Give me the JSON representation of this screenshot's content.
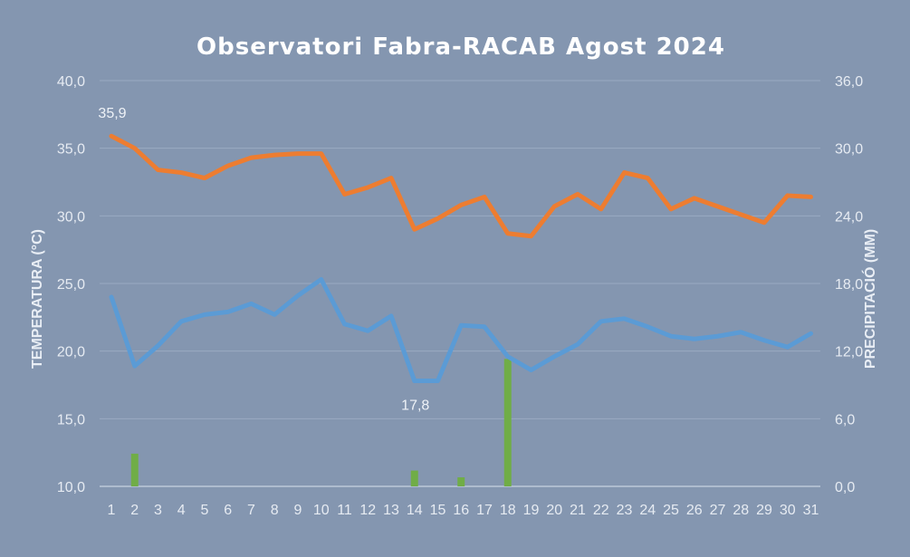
{
  "chart_data": {
    "type": "line",
    "title": "Observatori Fabra-RACAB Agost 2024",
    "ylabel_left": "TEMPERATURA (°C)",
    "ylabel_right": "PRECIPITACIÓ (MM)",
    "ylim_left": [
      10,
      40
    ],
    "ylim_right": [
      0,
      36
    ],
    "yticks_left": [
      "10,0",
      "15,0",
      "20,0",
      "25,0",
      "30,0",
      "35,0",
      "40,0"
    ],
    "yticks_right": [
      "0,0",
      "6,0",
      "12,0",
      "18,0",
      "24,0",
      "30,0",
      "36,0"
    ],
    "grid": true,
    "x": [
      "1",
      "2",
      "3",
      "4",
      "5",
      "6",
      "7",
      "8",
      "9",
      "10",
      "11",
      "12",
      "13",
      "14",
      "15",
      "16",
      "17",
      "18",
      "19",
      "20",
      "21",
      "22",
      "23",
      "24",
      "25",
      "26",
      "27",
      "28",
      "29",
      "30",
      "31"
    ],
    "series": [
      {
        "kind": "line",
        "axis": "left",
        "color": "#ed7d31",
        "values": [
          35.9,
          35.0,
          33.4,
          33.2,
          32.8,
          33.7,
          34.3,
          34.5,
          34.6,
          34.6,
          31.6,
          32.1,
          32.8,
          29.0,
          29.8,
          30.8,
          31.4,
          28.7,
          28.5,
          30.7,
          31.6,
          30.5,
          33.2,
          32.8,
          30.5,
          31.3,
          30.7,
          30.1,
          29.5,
          31.5,
          31.4
        ]
      },
      {
        "kind": "line",
        "axis": "left",
        "color": "#5b9bd5",
        "values": [
          24.0,
          18.9,
          20.4,
          22.2,
          22.7,
          22.9,
          23.5,
          22.7,
          24.1,
          25.3,
          22.0,
          21.5,
          22.6,
          17.8,
          17.8,
          21.9,
          21.8,
          19.6,
          18.6,
          19.6,
          20.5,
          22.2,
          22.4,
          21.8,
          21.1,
          20.9,
          21.1,
          21.4,
          20.8,
          20.3,
          21.3
        ]
      },
      {
        "kind": "bar",
        "axis": "right",
        "color": "#70ad47",
        "values": [
          0,
          2.9,
          0,
          0,
          0,
          0,
          0,
          0,
          0,
          0,
          0,
          0,
          0,
          1.4,
          0,
          0.8,
          0,
          11.3,
          0,
          0,
          0,
          0,
          0,
          0,
          0,
          0,
          0,
          0,
          0,
          0,
          0
        ]
      }
    ],
    "annotations": [
      {
        "text": "35,9",
        "series": 0,
        "index": 0,
        "position": "above"
      },
      {
        "text": "17,8",
        "series": 1,
        "index": 13,
        "position": "below"
      }
    ]
  }
}
